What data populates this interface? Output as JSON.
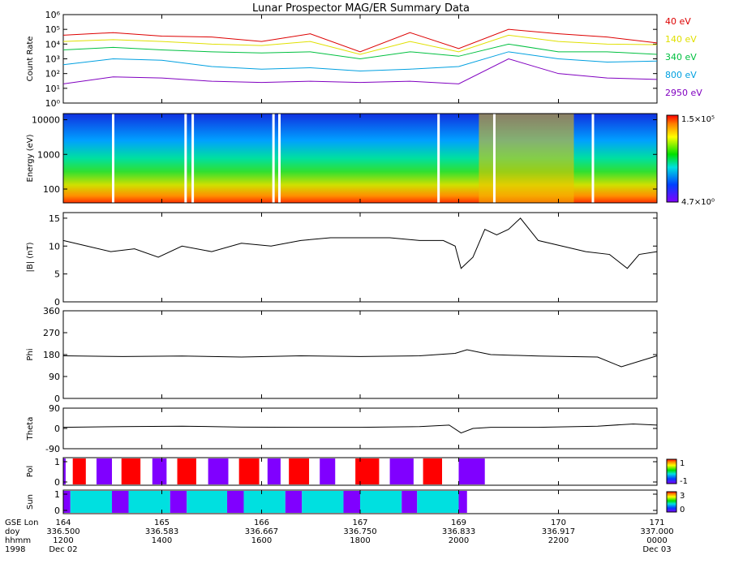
{
  "title": "Lunar Prospector MAG/ER Summary Data",
  "colors": {
    "ch40": "#dd0000",
    "ch140": "#e0e000",
    "ch340": "#00c040",
    "ch800": "#00a0e0",
    "ch2950": "#8000c0",
    "pol_pos": "#ff0000",
    "pol_neg": "#8000ff",
    "sun_lit": "#00e0e0",
    "sun_dark": "#8000ff",
    "trace": "#000000"
  },
  "chart_data": [
    {
      "type": "line",
      "panel": "count-rate",
      "ylabel": "Count Rate",
      "log_scale": true,
      "ylim": [
        1,
        1000000
      ],
      "y_tick_labels": [
        "10⁰",
        "10¹",
        "10²",
        "10³",
        "10⁴",
        "10⁵",
        "10⁶"
      ],
      "x": [
        336.5,
        336.542,
        336.583,
        336.625,
        336.667,
        336.708,
        336.75,
        336.792,
        336.833,
        336.875,
        336.917,
        336.958,
        337.0
      ],
      "series": [
        {
          "name": "40 eV",
          "color": "#dd0000",
          "values": [
            40000,
            60000,
            35000,
            30000,
            15000,
            50000,
            3000,
            60000,
            5000,
            100000,
            50000,
            30000,
            12000
          ]
        },
        {
          "name": "140 eV",
          "color": "#e0e000",
          "values": [
            15000,
            20000,
            15000,
            10000,
            8000,
            15000,
            2000,
            15000,
            3000,
            40000,
            15000,
            10000,
            9000
          ]
        },
        {
          "name": "340 eV",
          "color": "#00c040",
          "values": [
            4000,
            6000,
            4000,
            3000,
            2500,
            3000,
            1000,
            3000,
            1500,
            10000,
            3000,
            3000,
            2000
          ]
        },
        {
          "name": "800 eV",
          "color": "#00a0e0",
          "values": [
            400,
            1000,
            800,
            300,
            200,
            250,
            150,
            200,
            300,
            3000,
            1000,
            600,
            700
          ]
        },
        {
          "name": "2950 eV",
          "color": "#8000c0",
          "values": [
            20,
            60,
            50,
            30,
            25,
            30,
            25,
            30,
            20,
            1000,
            100,
            50,
            40
          ]
        }
      ]
    },
    {
      "type": "heatmap",
      "panel": "energy-spectrogram",
      "ylabel": "Energy (eV)",
      "log_scale": true,
      "ylim": [
        40,
        15000
      ],
      "y_tick_labels": [
        "100",
        "1000",
        "10000"
      ],
      "colorbar": {
        "min_label": "4.7×10⁰",
        "max_label": "1.5×10⁵"
      },
      "note": "Flux increases toward lower energies; broad high-flux band near 336.85–336.93."
    },
    {
      "type": "line",
      "panel": "b-magnitude",
      "ylabel": "|B| (nT)",
      "ylim": [
        0,
        16
      ],
      "y_tick_labels": [
        "0",
        "5",
        "10",
        "15"
      ],
      "x": [
        336.5,
        336.52,
        336.54,
        336.56,
        336.58,
        336.6,
        336.625,
        336.65,
        336.675,
        336.7,
        336.725,
        336.75,
        336.775,
        336.8,
        336.82,
        336.83,
        336.835,
        336.845,
        336.855,
        336.865,
        336.875,
        336.885,
        336.9,
        336.92,
        336.94,
        336.96,
        336.975,
        336.985,
        337.0
      ],
      "values": [
        11,
        10,
        9,
        9.5,
        8,
        10,
        9,
        10.5,
        10,
        11,
        11.5,
        11.5,
        11.5,
        11,
        11,
        10,
        6,
        8,
        13,
        12,
        13,
        15,
        11,
        10,
        9,
        8.5,
        6,
        8.5,
        9
      ]
    },
    {
      "type": "line",
      "panel": "phi",
      "ylabel": "Phi",
      "ylim": [
        0,
        360
      ],
      "y_tick_labels": [
        "0",
        "90",
        "180",
        "270",
        "360"
      ],
      "x": [
        336.5,
        336.55,
        336.6,
        336.65,
        336.7,
        336.75,
        336.8,
        336.83,
        336.84,
        336.86,
        336.9,
        336.95,
        336.97,
        337.0
      ],
      "values": [
        175,
        172,
        174,
        170,
        175,
        172,
        175,
        185,
        200,
        180,
        174,
        170,
        130,
        175
      ]
    },
    {
      "type": "line",
      "panel": "theta",
      "ylabel": "Theta",
      "ylim": [
        -90,
        90
      ],
      "y_tick_labels": [
        "-90",
        "0",
        "90"
      ],
      "x": [
        336.5,
        336.55,
        336.6,
        336.65,
        336.7,
        336.75,
        336.8,
        336.825,
        336.835,
        336.845,
        336.86,
        336.9,
        336.95,
        336.98,
        337.0
      ],
      "values": [
        5,
        8,
        10,
        6,
        5,
        5,
        8,
        15,
        -20,
        0,
        5,
        5,
        10,
        20,
        15
      ]
    },
    {
      "type": "bar",
      "panel": "polarity",
      "ylabel": "Pol",
      "y_tick_labels": [
        "0",
        "1"
      ],
      "colorbar": {
        "min_label": "-1",
        "max_label": "1"
      },
      "segments": [
        {
          "start": 336.5,
          "end": 336.502,
          "value": -1
        },
        {
          "start": 336.508,
          "end": 336.519,
          "value": 1
        },
        {
          "start": 336.528,
          "end": 336.541,
          "value": -1
        },
        {
          "start": 336.549,
          "end": 336.565,
          "value": 1
        },
        {
          "start": 336.575,
          "end": 336.587,
          "value": -1
        },
        {
          "start": 336.596,
          "end": 336.612,
          "value": 1
        },
        {
          "start": 336.622,
          "end": 336.639,
          "value": -1
        },
        {
          "start": 336.648,
          "end": 336.665,
          "value": 1
        },
        {
          "start": 336.672,
          "end": 336.683,
          "value": -1
        },
        {
          "start": 336.69,
          "end": 336.707,
          "value": 1
        },
        {
          "start": 336.716,
          "end": 336.729,
          "value": -1
        },
        {
          "start": 336.746,
          "end": 336.766,
          "value": 1
        },
        {
          "start": 336.775,
          "end": 336.795,
          "value": -1
        },
        {
          "start": 336.803,
          "end": 336.819,
          "value": 1
        },
        {
          "start": 336.833,
          "end": 336.855,
          "value": -1
        }
      ]
    },
    {
      "type": "bar",
      "panel": "sun",
      "ylabel": "Sun",
      "y_tick_labels": [
        "0",
        "1"
      ],
      "colorbar": {
        "min_label": "0",
        "max_label": "3"
      },
      "segments": [
        {
          "start": 336.5,
          "end": 336.506,
          "value": "dark"
        },
        {
          "start": 336.506,
          "end": 336.541,
          "value": "lit"
        },
        {
          "start": 336.541,
          "end": 336.555,
          "value": "dark"
        },
        {
          "start": 336.555,
          "end": 336.59,
          "value": "lit"
        },
        {
          "start": 336.59,
          "end": 336.604,
          "value": "dark"
        },
        {
          "start": 336.604,
          "end": 336.638,
          "value": "lit"
        },
        {
          "start": 336.638,
          "end": 336.652,
          "value": "dark"
        },
        {
          "start": 336.652,
          "end": 336.687,
          "value": "lit"
        },
        {
          "start": 336.687,
          "end": 336.701,
          "value": "dark"
        },
        {
          "start": 336.701,
          "end": 336.736,
          "value": "lit"
        },
        {
          "start": 336.736,
          "end": 336.75,
          "value": "dark"
        },
        {
          "start": 336.75,
          "end": 336.785,
          "value": "lit"
        },
        {
          "start": 336.785,
          "end": 336.798,
          "value": "dark"
        },
        {
          "start": 336.798,
          "end": 336.833,
          "value": "lit"
        },
        {
          "start": 336.833,
          "end": 336.84,
          "value": "dark"
        }
      ]
    }
  ],
  "x_axis": {
    "row_labels": [
      "GSE Lon",
      "doy",
      "hhmm",
      "1998"
    ],
    "ticks": [
      {
        "doy": 336.5,
        "gse_lon": "164",
        "doy_label": "336.500",
        "hhmm": "1200",
        "date": "Dec 02"
      },
      {
        "doy": 336.583,
        "gse_lon": "165",
        "doy_label": "336.583",
        "hhmm": "1400",
        "date": ""
      },
      {
        "doy": 336.667,
        "gse_lon": "166",
        "doy_label": "336.667",
        "hhmm": "1600",
        "date": ""
      },
      {
        "doy": 336.75,
        "gse_lon": "167",
        "doy_label": "336.750",
        "hhmm": "1800",
        "date": ""
      },
      {
        "doy": 336.833,
        "gse_lon": "169",
        "doy_label": "336.833",
        "hhmm": "2000",
        "date": ""
      },
      {
        "doy": 336.917,
        "gse_lon": "170",
        "doy_label": "336.917",
        "hhmm": "2200",
        "date": ""
      },
      {
        "doy": 337.0,
        "gse_lon": "171",
        "doy_label": "337.000",
        "hhmm": "0000",
        "date": "Dec 03"
      }
    ]
  }
}
